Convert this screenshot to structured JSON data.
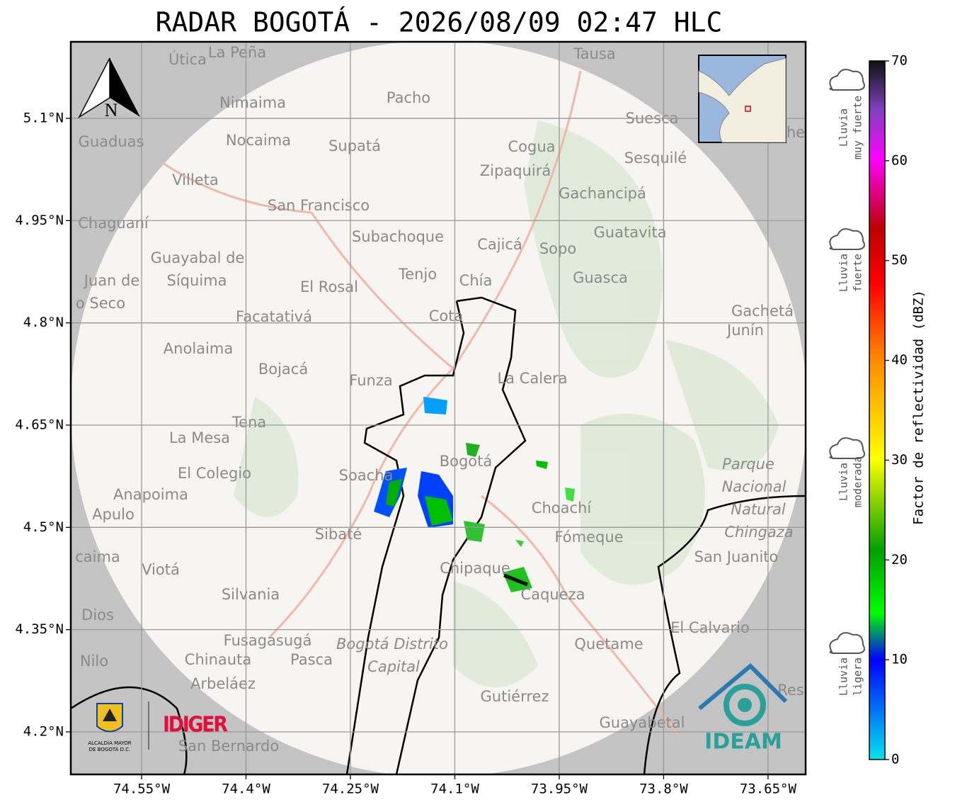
{
  "title": "RADAR BOGOTÁ - 2026/08/09 02:47 HLC",
  "map": {
    "xlim": [
      -74.6517,
      -73.596
    ],
    "ylim": [
      4.1376,
      5.2123
    ],
    "xticks": [
      {
        "value": -74.55,
        "label": "74.55°W"
      },
      {
        "value": -74.4,
        "label": "74.4°W"
      },
      {
        "value": -74.25,
        "label": "74.25°W"
      },
      {
        "value": -74.1,
        "label": "74.1°W"
      },
      {
        "value": -73.95,
        "label": "73.95°W"
      },
      {
        "value": -73.8,
        "label": "73.8°W"
      },
      {
        "value": -73.65,
        "label": "73.65°W"
      }
    ],
    "yticks": [
      {
        "value": 4.2,
        "label": "4.2°N"
      },
      {
        "value": 4.35,
        "label": "4.35°N"
      },
      {
        "value": 4.5,
        "label": "4.5°N"
      },
      {
        "value": 4.65,
        "label": "4.65°N"
      },
      {
        "value": 4.8,
        "label": "4.8°N"
      },
      {
        "value": 4.95,
        "label": "4.95°N"
      },
      {
        "value": 5.1,
        "label": "5.1°N"
      }
    ],
    "north_label": "N",
    "places": [
      "Útica",
      "La Peña",
      "Tausa",
      "Pacho",
      "Nimaima",
      "Guaduas",
      "Nocaima",
      "Supatá",
      "Cogua",
      "Suesca",
      "Sesquilé",
      "Villeta",
      "Zipaquirá",
      "Gachancipá",
      "San Francisco",
      "Chaguaní",
      "Guatavita",
      "Subachoque",
      "Cajicá",
      "Sopo",
      "Guayabal de",
      "Síquima",
      "Tenjo",
      "Chía",
      "Guasca",
      "El Rosal",
      "Juan de",
      "o Seco",
      "Cota",
      "Gachetá",
      "Junín",
      "Facatativá",
      "Anolaima",
      "Bojacá",
      "Funza",
      "La Calera",
      "Tena",
      "La Mesa",
      "Bogotá",
      "Soacha",
      "Parque",
      "Nacional",
      "Natural",
      "Chingaza",
      "El Colegio",
      "Anapoima",
      "Apulo",
      "Choachí",
      "Sibaté",
      "Fómeque",
      "San Juanito",
      "caima",
      "Viotá",
      "Chipaque",
      "Silvania",
      "Caqueza",
      "Dios",
      "El Calvario",
      "Fusagasugá",
      "Bogotá Distrito",
      "Capital",
      "Quetame",
      "Nilo",
      "Chinauta",
      "Pasca",
      "Arbeláez",
      "Gutiérrez",
      "Res",
      "Guayabetal",
      "San Bernardo",
      "he"
    ]
  },
  "colorbar": {
    "label": "Factor de reflectividad (dBZ)",
    "lim": [
      0,
      70
    ],
    "ticks": [
      0,
      10,
      20,
      30,
      40,
      50,
      60,
      70
    ]
  },
  "rain_levels": [
    {
      "lines": [
        "Lluvia",
        "ligera"
      ]
    },
    {
      "lines": [
        "Lluvia",
        "moderada"
      ]
    },
    {
      "lines": [
        "Lluvia",
        "fuerte"
      ]
    },
    {
      "lines": [
        "Lluvia",
        "muy fuerte"
      ]
    }
  ],
  "logos": {
    "alcaldia": [
      "ALCALDÍA MAYOR",
      "DE BOGOTÁ D.C."
    ],
    "idiger": "IDIGER",
    "ideam": "IDEAM"
  }
}
